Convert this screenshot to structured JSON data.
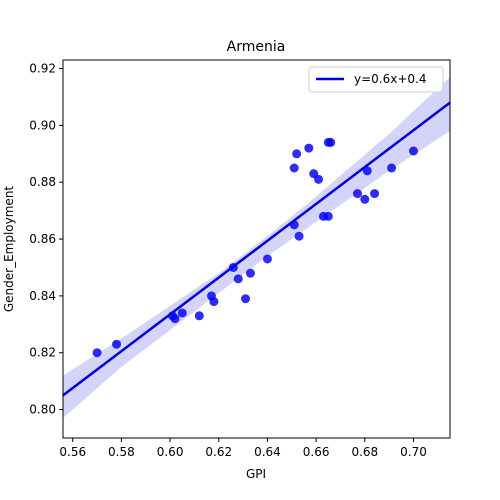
{
  "chart_data": {
    "type": "scatter",
    "title": "Armenia",
    "xlabel": "GPI",
    "ylabel": "Gender_Employment",
    "xlim": [
      0.556,
      0.715
    ],
    "ylim": [
      0.79,
      0.923
    ],
    "xticks": [
      0.56,
      0.58,
      0.6,
      0.62,
      0.64,
      0.66,
      0.68,
      0.7
    ],
    "yticks": [
      0.8,
      0.82,
      0.84,
      0.86,
      0.88,
      0.9,
      0.92
    ],
    "grid": false,
    "legend_position": "top-right",
    "colors": {
      "points": "#0000ee",
      "line": "#0000dd",
      "band": "#d4d4fb"
    },
    "series": [
      {
        "kind": "points",
        "points": [
          {
            "x": 0.57,
            "y": 0.82
          },
          {
            "x": 0.578,
            "y": 0.823
          },
          {
            "x": 0.601,
            "y": 0.833
          },
          {
            "x": 0.602,
            "y": 0.832
          },
          {
            "x": 0.605,
            "y": 0.834
          },
          {
            "x": 0.612,
            "y": 0.833
          },
          {
            "x": 0.617,
            "y": 0.84
          },
          {
            "x": 0.618,
            "y": 0.838
          },
          {
            "x": 0.626,
            "y": 0.85
          },
          {
            "x": 0.628,
            "y": 0.846
          },
          {
            "x": 0.631,
            "y": 0.839
          },
          {
            "x": 0.633,
            "y": 0.848
          },
          {
            "x": 0.64,
            "y": 0.853
          },
          {
            "x": 0.651,
            "y": 0.865
          },
          {
            "x": 0.651,
            "y": 0.885
          },
          {
            "x": 0.652,
            "y": 0.89
          },
          {
            "x": 0.653,
            "y": 0.861
          },
          {
            "x": 0.657,
            "y": 0.892
          },
          {
            "x": 0.659,
            "y": 0.883
          },
          {
            "x": 0.661,
            "y": 0.881
          },
          {
            "x": 0.663,
            "y": 0.868
          },
          {
            "x": 0.665,
            "y": 0.868
          },
          {
            "x": 0.665,
            "y": 0.894
          },
          {
            "x": 0.666,
            "y": 0.894
          },
          {
            "x": 0.677,
            "y": 0.876
          },
          {
            "x": 0.68,
            "y": 0.874
          },
          {
            "x": 0.681,
            "y": 0.884
          },
          {
            "x": 0.684,
            "y": 0.876
          },
          {
            "x": 0.691,
            "y": 0.885
          },
          {
            "x": 0.7,
            "y": 0.891
          }
        ]
      },
      {
        "kind": "regression-line",
        "name": "y=0.6x+0.4",
        "line": [
          {
            "x": 0.556,
            "y": 0.805
          },
          {
            "x": 0.715,
            "y": 0.908
          }
        ],
        "band_upper": [
          {
            "x": 0.556,
            "y": 0.812
          },
          {
            "x": 0.58,
            "y": 0.825
          },
          {
            "x": 0.62,
            "y": 0.848
          },
          {
            "x": 0.64,
            "y": 0.861
          },
          {
            "x": 0.66,
            "y": 0.875
          },
          {
            "x": 0.69,
            "y": 0.897
          },
          {
            "x": 0.715,
            "y": 0.917
          }
        ],
        "band_lower": [
          {
            "x": 0.556,
            "y": 0.797
          },
          {
            "x": 0.58,
            "y": 0.815
          },
          {
            "x": 0.62,
            "y": 0.841
          },
          {
            "x": 0.64,
            "y": 0.854
          },
          {
            "x": 0.66,
            "y": 0.866
          },
          {
            "x": 0.69,
            "y": 0.884
          },
          {
            "x": 0.715,
            "y": 0.898
          }
        ]
      }
    ]
  }
}
